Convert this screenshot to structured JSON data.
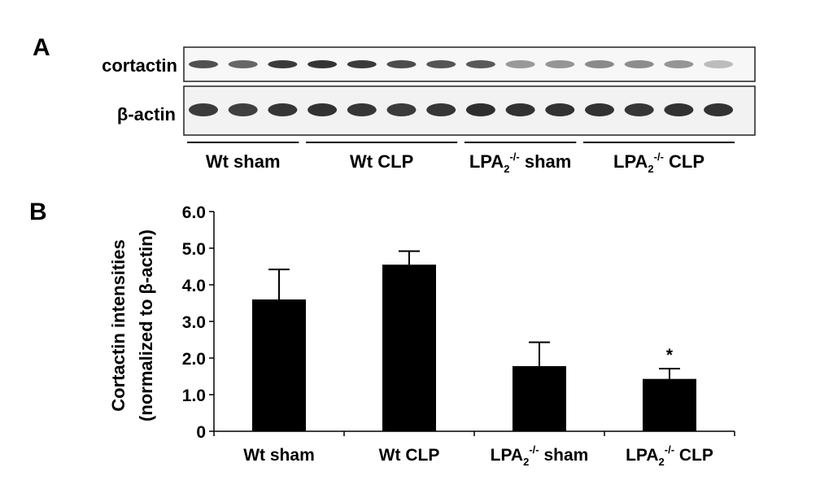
{
  "panels": {
    "a_label": "A",
    "b_label": "B"
  },
  "blot": {
    "rows": [
      {
        "label": "cortactin",
        "band_intensity": [
          0.72,
          0.62,
          0.82,
          0.85,
          0.82,
          0.74,
          0.7,
          0.68,
          0.38,
          0.4,
          0.45,
          0.44,
          0.4,
          0.22
        ]
      },
      {
        "label": "β-actin",
        "band_intensity": [
          0.82,
          0.8,
          0.84,
          0.86,
          0.84,
          0.82,
          0.84,
          0.88,
          0.86,
          0.86,
          0.86,
          0.84,
          0.86,
          0.86
        ]
      }
    ],
    "groups": [
      {
        "base": "Wt sham",
        "sup": "",
        "tail": "",
        "lanes": 3
      },
      {
        "base": "Wt  CLP",
        "sup": "",
        "tail": "",
        "lanes": 4
      },
      {
        "base": "LPA",
        "sub": "2",
        "sup": "-/-",
        "tail": " sham",
        "lanes": 3
      },
      {
        "base": "LPA",
        "sub": "2",
        "sup": "-/-",
        "tail": " CLP",
        "lanes": 4
      }
    ]
  },
  "chart_data": {
    "type": "bar",
    "categories": [
      "Wt sham",
      "Wt  CLP",
      "LPA2-/- sham",
      "LPA2-/- CLP"
    ],
    "category_parts": [
      {
        "base": "Wt sham",
        "sub": "",
        "sup": "",
        "tail": ""
      },
      {
        "base": "Wt  CLP",
        "sub": "",
        "sup": "",
        "tail": ""
      },
      {
        "base": "LPA",
        "sub": "2",
        "sup": "-/-",
        "tail": " sham"
      },
      {
        "base": "LPA",
        "sub": "2",
        "sup": "-/-",
        "tail": " CLP"
      }
    ],
    "values": [
      3.6,
      4.55,
      1.78,
      1.43
    ],
    "errors": [
      0.82,
      0.37,
      0.65,
      0.28
    ],
    "annotations": [
      "",
      "",
      "",
      "*"
    ],
    "ylabel_line1": "Cortactin intensities",
    "ylabel_line2": "(normalized to β-actin)",
    "ylim": [
      0,
      6
    ],
    "yticks": [
      0,
      1,
      2,
      3,
      4,
      5,
      6
    ],
    "ytick_labels": [
      "0",
      "1.0",
      "2.0",
      "3.0",
      "4.0",
      "5.0",
      "6.0"
    ],
    "bar_color": "#000000"
  }
}
